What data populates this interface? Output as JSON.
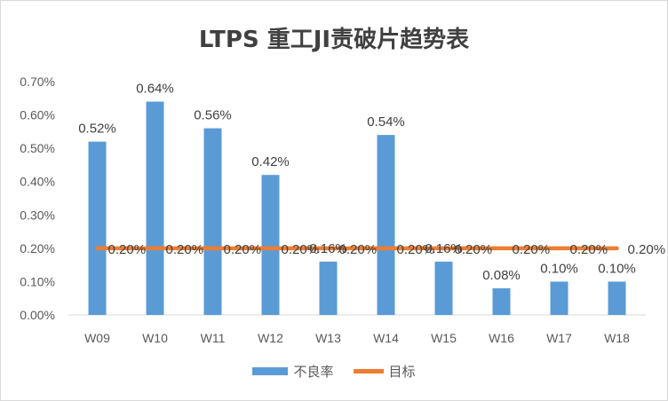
{
  "chart_data": {
    "type": "bar",
    "title": "LTPS 重工JI责破片趋势表",
    "categories": [
      "W09",
      "W10",
      "W11",
      "W12",
      "W13",
      "W14",
      "W15",
      "W16",
      "W17",
      "W18"
    ],
    "series": [
      {
        "name": "不良率",
        "type": "bar",
        "values": [
          0.52,
          0.64,
          0.56,
          0.42,
          0.16,
          0.54,
          0.16,
          0.08,
          0.1,
          0.1
        ],
        "labels": [
          "0.52%",
          "0.64%",
          "0.56%",
          "0.42%",
          "0.16%",
          "0.54%",
          "0.16%",
          "0.08%",
          "0.10%",
          "0.10%"
        ],
        "color": "#5b9bd5"
      },
      {
        "name": "目标",
        "type": "line",
        "values": [
          0.2,
          0.2,
          0.2,
          0.2,
          0.2,
          0.2,
          0.2,
          0.2,
          0.2,
          0.2
        ],
        "labels": [
          "0.20%",
          "0.20%",
          "0.20%",
          "0.20%",
          "0.20%",
          "0.20%",
          "0.20%",
          "0.20%",
          "0.20%",
          "0.20%"
        ],
        "color": "#ed7d31"
      }
    ],
    "ylim": [
      0,
      0.7
    ],
    "yticks": [
      {
        "value": 0.0,
        "label": "0.00%"
      },
      {
        "value": 0.1,
        "label": "0.10%"
      },
      {
        "value": 0.2,
        "label": "0.20%"
      },
      {
        "value": 0.3,
        "label": "0.30%"
      },
      {
        "value": 0.4,
        "label": "0.40%"
      },
      {
        "value": 0.5,
        "label": "0.50%"
      },
      {
        "value": 0.6,
        "label": "0.60%"
      },
      {
        "value": 0.7,
        "label": "0.70%"
      }
    ],
    "legend_position": "bottom",
    "grid": false
  }
}
